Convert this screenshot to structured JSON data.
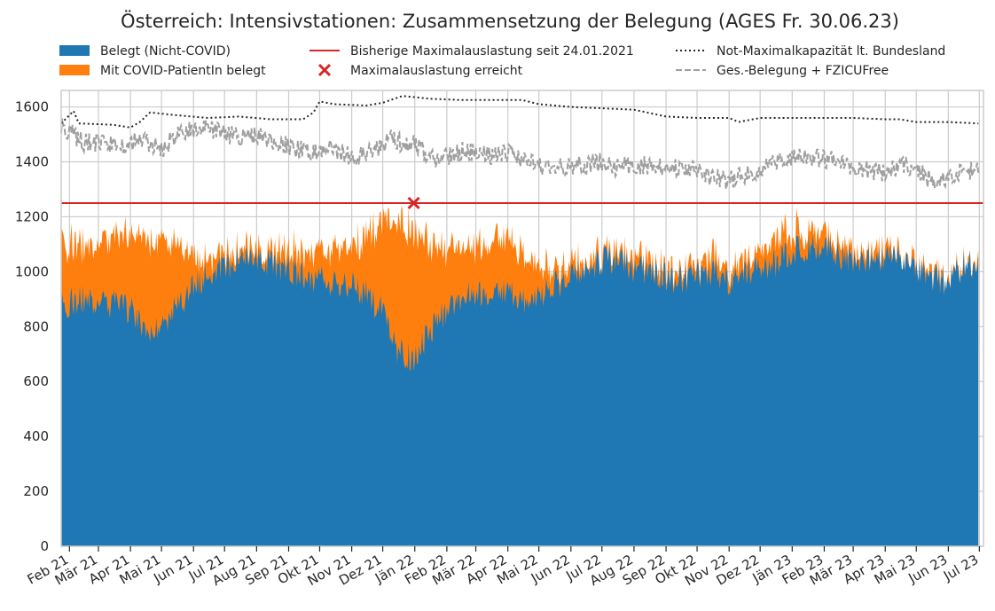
{
  "chart_data": {
    "type": "area",
    "title": "Österreich: Intensivstationen: Zusammensetzung der Belegung (AGES Fr. 30.06.23)",
    "xlabel": "",
    "ylabel": "",
    "ylim": [
      0,
      1660
    ],
    "y_ticks": [
      0,
      200,
      400,
      600,
      800,
      1000,
      1200,
      1400,
      1600
    ],
    "x_range": [
      "2021-01-24",
      "2023-07-05"
    ],
    "x_ticks": [
      {
        "date": "2021-02-01",
        "label": "Feb 21"
      },
      {
        "date": "2021-03-01",
        "label": "Mär 21"
      },
      {
        "date": "2021-04-01",
        "label": "Apr 21"
      },
      {
        "date": "2021-05-01",
        "label": "Mai 21"
      },
      {
        "date": "2021-06-01",
        "label": "Jun 21"
      },
      {
        "date": "2021-07-01",
        "label": "Jul 21"
      },
      {
        "date": "2021-08-01",
        "label": "Aug 21"
      },
      {
        "date": "2021-09-01",
        "label": "Sep 21"
      },
      {
        "date": "2021-10-01",
        "label": "Okt 21"
      },
      {
        "date": "2021-11-01",
        "label": "Nov 21"
      },
      {
        "date": "2021-12-01",
        "label": "Dez 21"
      },
      {
        "date": "2022-01-01",
        "label": "Jän 22"
      },
      {
        "date": "2022-02-01",
        "label": "Feb 22"
      },
      {
        "date": "2022-03-01",
        "label": "Mär 22"
      },
      {
        "date": "2022-04-01",
        "label": "Apr 22"
      },
      {
        "date": "2022-05-01",
        "label": "Mai 22"
      },
      {
        "date": "2022-06-01",
        "label": "Jun 22"
      },
      {
        "date": "2022-07-01",
        "label": "Jul 22"
      },
      {
        "date": "2022-08-01",
        "label": "Aug 22"
      },
      {
        "date": "2022-09-01",
        "label": "Sep 22"
      },
      {
        "date": "2022-10-01",
        "label": "Okt 22"
      },
      {
        "date": "2022-11-01",
        "label": "Nov 22"
      },
      {
        "date": "2022-12-01",
        "label": "Dez 22"
      },
      {
        "date": "2023-01-01",
        "label": "Jän 23"
      },
      {
        "date": "2023-02-01",
        "label": "Feb 23"
      },
      {
        "date": "2023-03-01",
        "label": "Mär 23"
      },
      {
        "date": "2023-04-01",
        "label": "Apr 23"
      },
      {
        "date": "2023-05-01",
        "label": "Mai 23"
      },
      {
        "date": "2023-06-01",
        "label": "Jun 23"
      },
      {
        "date": "2023-07-01",
        "label": "Jul 23"
      }
    ],
    "grid": true,
    "legend_position": "top",
    "legend": [
      {
        "label": "Belegt (Nicht-COVID)",
        "kind": "patch",
        "color": "#1f77b4"
      },
      {
        "label": "Mit COVID-PatientIn belegt",
        "kind": "patch",
        "color": "#ff7f0e"
      },
      {
        "label": "Bisherige Maximalauslastung seit 24.01.2021",
        "kind": "line",
        "color": "#d62728"
      },
      {
        "label": "Maximalauslastung erreicht",
        "kind": "marker",
        "color": "#d62728"
      },
      {
        "label": "Not-Maximalkapazität lt. Bundesland",
        "kind": "dotted",
        "color": "#262626"
      },
      {
        "label": "Ges.-Belegung + FZICUFree",
        "kind": "dashed",
        "color": "#a0a0a0"
      }
    ],
    "series": [
      {
        "name": "Belegt (Nicht-COVID)",
        "kind": "stacked-area",
        "color": "#1f77b4",
        "x": [
          "2021-01-24",
          "2021-02-15",
          "2021-03-15",
          "2021-04-01",
          "2021-04-15",
          "2021-05-01",
          "2021-05-15",
          "2021-06-01",
          "2021-06-15",
          "2021-07-01",
          "2021-07-15",
          "2021-08-01",
          "2021-08-15",
          "2021-09-01",
          "2021-09-15",
          "2021-10-01",
          "2021-10-15",
          "2021-11-01",
          "2021-11-15",
          "2021-12-01",
          "2021-12-15",
          "2022-01-01",
          "2022-01-15",
          "2022-02-01",
          "2022-02-15",
          "2022-03-01",
          "2022-03-15",
          "2022-04-01",
          "2022-04-15",
          "2022-05-01",
          "2022-05-15",
          "2022-06-01",
          "2022-06-15",
          "2022-07-01",
          "2022-07-15",
          "2022-08-01",
          "2022-08-15",
          "2022-09-01",
          "2022-09-15",
          "2022-10-01",
          "2022-10-15",
          "2022-11-01",
          "2022-11-15",
          "2022-12-01",
          "2022-12-15",
          "2023-01-01",
          "2023-01-15",
          "2023-02-01",
          "2023-02-15",
          "2023-03-01",
          "2023-03-15",
          "2023-04-01",
          "2023-04-15",
          "2023-05-01",
          "2023-05-15",
          "2023-06-01",
          "2023-06-15",
          "2023-06-30"
        ],
        "values": [
          880,
          900,
          880,
          860,
          790,
          810,
          870,
          940,
          990,
          1020,
          1040,
          1040,
          1030,
          1010,
          990,
          970,
          960,
          950,
          920,
          850,
          720,
          680,
          780,
          860,
          900,
          920,
          930,
          930,
          900,
          900,
          950,
          980,
          1010,
          1040,
          1040,
          1010,
          1000,
          980,
          970,
          990,
          1000,
          960,
          990,
          1020,
          1030,
          1070,
          1090,
          1100,
          1060,
          1040,
          1040,
          1060,
          1040,
          1020,
          980,
          960,
          1020,
          1030
        ]
      },
      {
        "name": "Mit COVID-PatientIn belegt",
        "kind": "stacked-area",
        "color": "#ff7f0e",
        "x": [
          "2021-01-24",
          "2021-02-15",
          "2021-03-15",
          "2021-04-01",
          "2021-04-15",
          "2021-05-01",
          "2021-05-15",
          "2021-06-01",
          "2021-06-15",
          "2021-07-01",
          "2021-07-15",
          "2021-08-01",
          "2021-08-15",
          "2021-09-01",
          "2021-09-15",
          "2021-10-01",
          "2021-10-15",
          "2021-11-01",
          "2021-11-15",
          "2021-12-01",
          "2021-12-15",
          "2022-01-01",
          "2022-01-15",
          "2022-02-01",
          "2022-02-15",
          "2022-03-01",
          "2022-03-15",
          "2022-04-01",
          "2022-04-15",
          "2022-05-01",
          "2022-05-15",
          "2022-06-01",
          "2022-06-15",
          "2022-07-01",
          "2022-07-15",
          "2022-08-01",
          "2022-08-15",
          "2022-09-01",
          "2022-09-15",
          "2022-10-01",
          "2022-10-15",
          "2022-11-01",
          "2022-11-15",
          "2022-12-01",
          "2022-12-15",
          "2023-01-01",
          "2023-01-15",
          "2023-02-01",
          "2023-02-15",
          "2023-03-01",
          "2023-03-15",
          "2023-04-01",
          "2023-04-15",
          "2023-05-01",
          "2023-05-15",
          "2023-06-01",
          "2023-06-15",
          "2023-06-30"
        ],
        "values": [
          230,
          200,
          240,
          270,
          340,
          330,
          220,
          110,
          70,
          35,
          30,
          30,
          45,
          70,
          90,
          110,
          130,
          150,
          210,
          320,
          460,
          470,
          320,
          220,
          190,
          180,
          190,
          200,
          170,
          100,
          70,
          50,
          30,
          30,
          40,
          40,
          35,
          35,
          35,
          35,
          60,
          45,
          40,
          60,
          90,
          80,
          70,
          60,
          45,
          35,
          25,
          25,
          20,
          10,
          8,
          5,
          3,
          3
        ]
      },
      {
        "name": "Not-Maximalkapazität lt. Bundesland",
        "kind": "dotted",
        "color": "#262626",
        "x": [
          "2021-01-24",
          "2021-02-05",
          "2021-02-10",
          "2021-03-15",
          "2021-04-01",
          "2021-04-10",
          "2021-04-20",
          "2021-05-15",
          "2021-06-15",
          "2021-07-15",
          "2021-08-15",
          "2021-09-15",
          "2021-09-25",
          "2021-10-01",
          "2021-10-15",
          "2021-11-15",
          "2021-12-01",
          "2021-12-20",
          "2022-01-15",
          "2022-02-15",
          "2022-03-15",
          "2022-04-15",
          "2022-05-01",
          "2022-06-01",
          "2022-07-01",
          "2022-08-01",
          "2022-09-01",
          "2022-10-01",
          "2022-11-01",
          "2022-11-10",
          "2022-12-01",
          "2023-01-01",
          "2023-02-01",
          "2023-03-01",
          "2023-04-01",
          "2023-04-15",
          "2023-05-01",
          "2023-06-01",
          "2023-06-30"
        ],
        "values": [
          1540,
          1585,
          1540,
          1535,
          1525,
          1545,
          1580,
          1570,
          1560,
          1565,
          1555,
          1555,
          1580,
          1620,
          1610,
          1605,
          1615,
          1640,
          1630,
          1625,
          1625,
          1625,
          1610,
          1600,
          1595,
          1590,
          1565,
          1560,
          1560,
          1545,
          1560,
          1560,
          1560,
          1560,
          1555,
          1555,
          1545,
          1545,
          1540
        ]
      },
      {
        "name": "Ges.-Belegung + FZICUFree",
        "kind": "dashed",
        "color": "#a0a0a0",
        "x": [
          "2021-01-24",
          "2021-02-01",
          "2021-02-15",
          "2021-03-15",
          "2021-04-01",
          "2021-04-15",
          "2021-05-01",
          "2021-05-15",
          "2021-06-01",
          "2021-06-15",
          "2021-07-01",
          "2021-07-15",
          "2021-08-01",
          "2021-08-15",
          "2021-09-01",
          "2021-09-15",
          "2021-10-01",
          "2021-10-15",
          "2021-11-01",
          "2021-11-15",
          "2021-12-01",
          "2021-12-10",
          "2021-12-25",
          "2022-01-01",
          "2022-01-15",
          "2022-02-01",
          "2022-02-15",
          "2022-03-01",
          "2022-03-15",
          "2022-04-01",
          "2022-04-15",
          "2022-05-01",
          "2022-06-01",
          "2022-07-01",
          "2022-07-15",
          "2022-08-01",
          "2022-09-01",
          "2022-10-01",
          "2022-10-15",
          "2022-11-01",
          "2022-11-15",
          "2022-12-01",
          "2022-12-15",
          "2023-01-01",
          "2023-01-15",
          "2023-02-01",
          "2023-02-15",
          "2023-03-01",
          "2023-04-01",
          "2023-04-15",
          "2023-05-01",
          "2023-05-15",
          "2023-06-01",
          "2023-06-15",
          "2023-06-30"
        ],
        "values": [
          1530,
          1510,
          1470,
          1460,
          1470,
          1480,
          1440,
          1500,
          1520,
          1520,
          1500,
          1490,
          1500,
          1480,
          1460,
          1440,
          1440,
          1450,
          1420,
          1430,
          1450,
          1490,
          1450,
          1470,
          1410,
          1420,
          1440,
          1430,
          1420,
          1430,
          1410,
          1380,
          1380,
          1400,
          1380,
          1390,
          1380,
          1370,
          1340,
          1330,
          1350,
          1370,
          1400,
          1420,
          1410,
          1410,
          1400,
          1380,
          1360,
          1390,
          1380,
          1330,
          1340,
          1370,
          1370
        ]
      },
      {
        "name": "Bisherige Maximalauslastung seit 24.01.2021",
        "kind": "hline",
        "color": "#d62728",
        "value": 1250
      },
      {
        "name": "Maximalauslastung erreicht",
        "kind": "marker",
        "color": "#d62728",
        "points": [
          {
            "x": "2021-12-31",
            "y": 1250
          }
        ]
      }
    ]
  }
}
